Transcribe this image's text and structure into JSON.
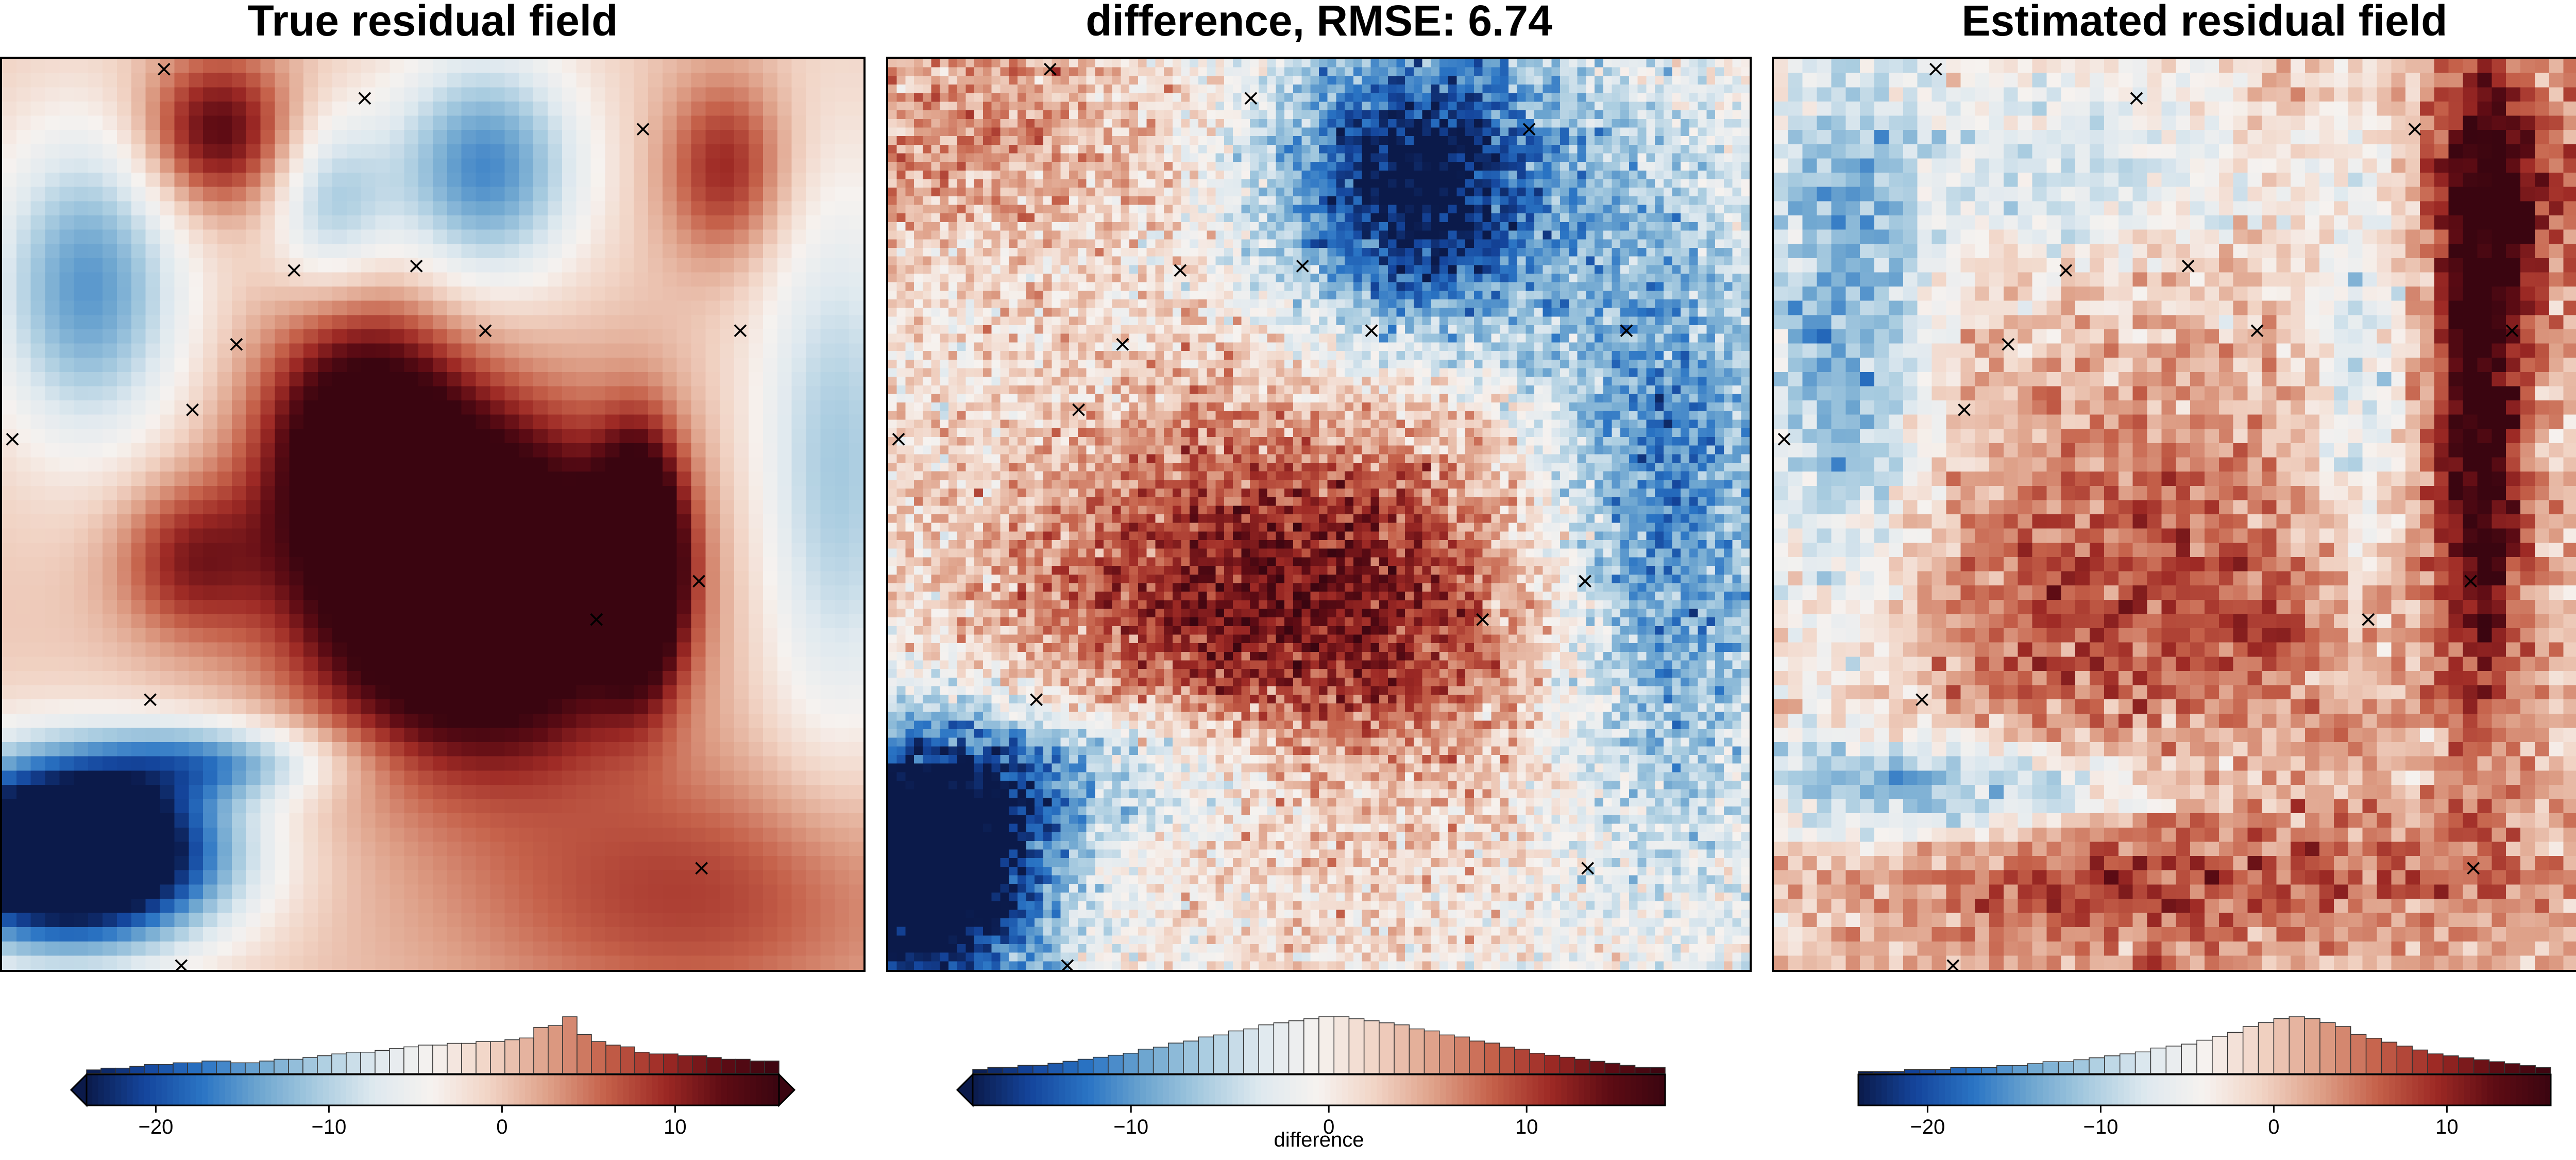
{
  "colormap": {
    "name": "RdBu_r",
    "stops": [
      "#0b1a4a",
      "#14459c",
      "#2a74c4",
      "#6ea6d0",
      "#a9cce0",
      "#dfe9ef",
      "#f6f2ef",
      "#f1d3c4",
      "#dea088",
      "#c5614a",
      "#9e2a25",
      "#5f0c14",
      "#3a0510"
    ]
  },
  "chart_data": [
    {
      "type": "heatmap",
      "title": "True residual field",
      "texture": "smooth",
      "grid": {
        "cols": 60,
        "rows": 64
      },
      "vmin": -24,
      "vmax": 16,
      "features": [
        {
          "x": 0.55,
          "y": 0.58,
          "sx": 0.13,
          "sy": 0.12,
          "a": 34
        },
        {
          "x": 0.42,
          "y": 0.42,
          "sx": 0.08,
          "sy": 0.1,
          "a": 20
        },
        {
          "x": 0.74,
          "y": 0.55,
          "sx": 0.035,
          "sy": 0.09,
          "a": 26
        },
        {
          "x": 0.25,
          "y": 0.08,
          "sx": 0.06,
          "sy": 0.06,
          "a": 14
        },
        {
          "x": 0.84,
          "y": 0.12,
          "sx": 0.05,
          "sy": 0.07,
          "a": 10
        },
        {
          "x": 0.22,
          "y": 0.55,
          "sx": 0.06,
          "sy": 0.06,
          "a": 10
        },
        {
          "x": 0.08,
          "y": 0.87,
          "sx": 0.12,
          "sy": 0.07,
          "a": -42
        },
        {
          "x": 0.56,
          "y": 0.12,
          "sx": 0.08,
          "sy": 0.09,
          "a": -16
        },
        {
          "x": 0.1,
          "y": 0.25,
          "sx": 0.08,
          "sy": 0.12,
          "a": -15
        },
        {
          "x": 0.38,
          "y": 0.16,
          "sx": 0.05,
          "sy": 0.07,
          "a": -10
        },
        {
          "x": 0.97,
          "y": 0.45,
          "sx": 0.07,
          "sy": 0.22,
          "a": -11
        },
        {
          "x": 0.25,
          "y": 0.77,
          "sx": 0.1,
          "sy": 0.03,
          "a": -12
        },
        {
          "x": 0.8,
          "y": 0.92,
          "sx": 0.2,
          "sy": 0.1,
          "a": 8
        }
      ],
      "colorbar": {
        "ticks": [
          -20,
          -10,
          0,
          10
        ],
        "extend": "both",
        "label": "",
        "hist": [
          2,
          3,
          3,
          4,
          5,
          5,
          6,
          6,
          7,
          7,
          6,
          6,
          7,
          8,
          8,
          9,
          10,
          11,
          12,
          12,
          13,
          14,
          15,
          16,
          16,
          17,
          17,
          18,
          18,
          19,
          20,
          26,
          27,
          32,
          22,
          18,
          16,
          15,
          12,
          11,
          11,
          10,
          10,
          9,
          8,
          8,
          7,
          7
        ]
      }
    },
    {
      "type": "heatmap",
      "title": "difference, RMSE: 6.74",
      "texture": "noisy",
      "grid": {
        "cols": 100,
        "rows": 106
      },
      "vmin": -18,
      "vmax": 17,
      "features": [
        {
          "x": 0.47,
          "y": 0.6,
          "sx": 0.23,
          "sy": 0.16,
          "a": 14
        },
        {
          "x": 0.05,
          "y": 0.9,
          "sx": 0.1,
          "sy": 0.1,
          "a": -26
        },
        {
          "x": 0.2,
          "y": 0.78,
          "sx": 0.22,
          "sy": 0.06,
          "a": -10
        },
        {
          "x": 0.62,
          "y": 0.14,
          "sx": 0.12,
          "sy": 0.12,
          "a": -20
        },
        {
          "x": 0.9,
          "y": 0.5,
          "sx": 0.1,
          "sy": 0.25,
          "a": -13
        },
        {
          "x": 0.1,
          "y": 0.08,
          "sx": 0.15,
          "sy": 0.1,
          "a": 6
        }
      ],
      "colorbar": {
        "ticks": [
          -10,
          0,
          10
        ],
        "extend": "min",
        "label": "difference",
        "hist": [
          2,
          3,
          3,
          4,
          4,
          5,
          6,
          7,
          8,
          9,
          10,
          12,
          13,
          15,
          16,
          18,
          19,
          21,
          22,
          24,
          25,
          26,
          27,
          28,
          28,
          27,
          26,
          25,
          24,
          22,
          21,
          19,
          18,
          16,
          15,
          13,
          12,
          10,
          9,
          8,
          7,
          6,
          5,
          4,
          3,
          3
        ]
      }
    },
    {
      "type": "heatmap",
      "title": "Estimated residual field",
      "texture": "noisy",
      "grid": {
        "cols": 60,
        "rows": 64
      },
      "vmin": -24,
      "vmax": 16,
      "features": [
        {
          "x": 0.82,
          "y": 0.38,
          "sx": 0.035,
          "sy": 0.25,
          "a": 18
        },
        {
          "x": 0.86,
          "y": 0.14,
          "sx": 0.07,
          "sy": 0.1,
          "a": 10
        },
        {
          "x": 0.43,
          "y": 0.6,
          "sx": 0.2,
          "sy": 0.14,
          "a": 8
        },
        {
          "x": 0.5,
          "y": 0.9,
          "sx": 0.3,
          "sy": 0.06,
          "a": 7
        },
        {
          "x": 0.08,
          "y": 0.3,
          "sx": 0.07,
          "sy": 0.25,
          "a": -14
        },
        {
          "x": 0.2,
          "y": 0.8,
          "sx": 0.2,
          "sy": 0.04,
          "a": -14
        },
        {
          "x": 0.35,
          "y": 0.12,
          "sx": 0.15,
          "sy": 0.08,
          "a": -8
        },
        {
          "x": 0.68,
          "y": 0.35,
          "sx": 0.04,
          "sy": 0.2,
          "a": -8
        }
      ],
      "colorbar": {
        "ticks": [
          -20,
          -10,
          0,
          10
        ],
        "extend": "none",
        "label": "",
        "hist": [
          1,
          1,
          1,
          2,
          2,
          2,
          3,
          3,
          3,
          4,
          4,
          5,
          6,
          6,
          7,
          8,
          9,
          10,
          11,
          13,
          14,
          15,
          17,
          19,
          21,
          24,
          26,
          28,
          29,
          28,
          26,
          24,
          20,
          18,
          16,
          14,
          12,
          10,
          9,
          8,
          7,
          6,
          5,
          4,
          3
        ]
      }
    }
  ],
  "markers": {
    "symbol": "×",
    "points": [
      [
        0.188,
        0.011
      ],
      [
        0.421,
        0.043
      ],
      [
        0.744,
        0.077
      ],
      [
        0.339,
        0.232
      ],
      [
        0.481,
        0.227
      ],
      [
        0.561,
        0.298
      ],
      [
        0.857,
        0.298
      ],
      [
        0.272,
        0.313
      ],
      [
        0.221,
        0.385
      ],
      [
        0.012,
        0.417
      ],
      [
        0.809,
        0.573
      ],
      [
        0.69,
        0.615
      ],
      [
        0.172,
        0.703
      ],
      [
        0.812,
        0.888
      ],
      [
        0.208,
        0.995
      ]
    ]
  }
}
